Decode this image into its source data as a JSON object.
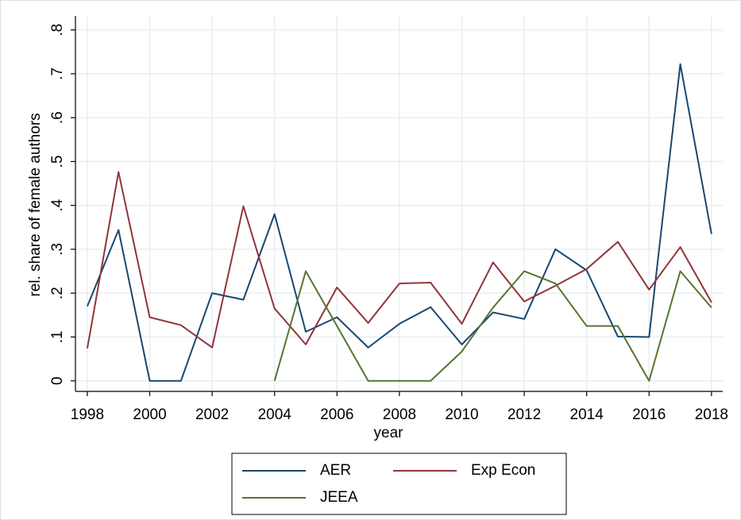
{
  "chart_data": {
    "type": "line",
    "x_label": "year",
    "y_label": "rel. share of female authors",
    "x": [
      1998,
      1999,
      2000,
      2001,
      2002,
      2003,
      2004,
      2005,
      2006,
      2007,
      2008,
      2009,
      2010,
      2011,
      2012,
      2013,
      2014,
      2015,
      2016,
      2017,
      2018
    ],
    "series": [
      {
        "name": "AER",
        "color": "#1a476f",
        "values": [
          0.17,
          0.344,
          0,
          0,
          0.2,
          0.185,
          0.38,
          0.112,
          0.145,
          0.076,
          0.13,
          0.168,
          0.083,
          0.156,
          0.141,
          0.3,
          0.252,
          0.101,
          0.1,
          0.722,
          0.335
        ]
      },
      {
        "name": "Exp Econ",
        "color": "#90353b",
        "values": [
          0.074,
          0.476,
          0.145,
          0.127,
          0.076,
          0.398,
          0.165,
          0.083,
          0.213,
          0.132,
          0.222,
          0.224,
          0.13,
          0.27,
          0.181,
          0.217,
          0.255,
          0.317,
          0.208,
          0.305,
          0.179
        ]
      },
      {
        "name": "JEEA",
        "color": "#55752f",
        "values": [
          null,
          null,
          null,
          null,
          null,
          null,
          0,
          0.25,
          0.125,
          0,
          0,
          0,
          0.067,
          0.167,
          0.25,
          0.222,
          0.125,
          0.125,
          0,
          0.25,
          0.167
        ]
      }
    ],
    "xlim": [
      1997.62,
      2018.36
    ],
    "ylim": [
      -0.024,
      0.832
    ],
    "xticks": [
      1998,
      2000,
      2002,
      2004,
      2006,
      2008,
      2010,
      2012,
      2014,
      2016,
      2018
    ],
    "yticks": [
      0,
      {
        "value": 0.1,
        "label": ".1"
      },
      {
        "value": 0.2,
        "label": ".2"
      },
      {
        "value": 0.3,
        "label": ".3"
      },
      {
        "value": 0.4,
        "label": ".4"
      },
      {
        "value": 0.5,
        "label": ".5"
      },
      {
        "value": 0.6,
        "label": ".6"
      },
      {
        "value": 0.7,
        "label": ".7"
      },
      {
        "value": 0.8,
        "label": ".8"
      }
    ],
    "grid": true,
    "legend": "bottom"
  }
}
